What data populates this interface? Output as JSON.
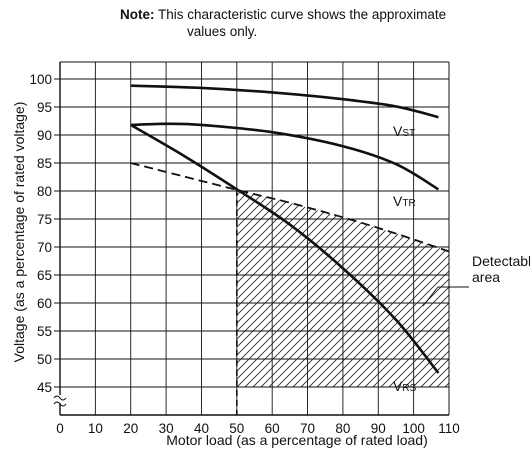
{
  "note": {
    "label": "Note:",
    "line1": "This characteristic curve shows the approximate",
    "line2": "values only."
  },
  "chart_data": {
    "type": "line",
    "xlabel": "Motor load (as a percentage of rated load)",
    "ylabel": "Voltage (as a percentage of rated voltage)",
    "xlim": [
      0,
      110
    ],
    "ylim": [
      45,
      100
    ],
    "x_ticks": [
      0,
      10,
      20,
      30,
      40,
      50,
      60,
      70,
      80,
      90,
      100,
      110
    ],
    "y_ticks": [
      45,
      50,
      55,
      60,
      65,
      70,
      75,
      80,
      85,
      90,
      95,
      100
    ],
    "y_axis_break": true,
    "grid": true,
    "series": [
      {
        "name": "VST",
        "main": "V",
        "sub": "ST",
        "style": "solid",
        "x": [
          20,
          40,
          60,
          80,
          95,
          107
        ],
        "y": [
          98.8,
          98.4,
          97.6,
          96.4,
          95.1,
          93.2
        ]
      },
      {
        "name": "VTR",
        "main": "V",
        "sub": "TR",
        "style": "solid",
        "x": [
          20,
          30,
          40,
          60,
          80,
          95,
          107
        ],
        "y": [
          91.8,
          92.0,
          91.8,
          90.5,
          88.0,
          84.8,
          80.3
        ]
      },
      {
        "name": "VRS",
        "main": "V",
        "sub": "RS",
        "style": "solid",
        "x": [
          20,
          35,
          50,
          65,
          80,
          95,
          107
        ],
        "y": [
          91.8,
          86.3,
          80.3,
          74.0,
          66.2,
          57.0,
          47.5
        ]
      },
      {
        "name": "boundary",
        "style": "dashed",
        "x": [
          20,
          35,
          50,
          65,
          80,
          95,
          110
        ],
        "y": [
          85.0,
          82.6,
          80.2,
          77.9,
          75.3,
          72.4,
          69.2
        ]
      }
    ],
    "shaded_region": {
      "x_start": 50,
      "x_end": 110,
      "bottom": 45,
      "top": "boundary",
      "pattern": "hatched"
    },
    "annotations": {
      "detectable": "Detectable",
      "area": "area",
      "break_symbol": "~"
    }
  }
}
